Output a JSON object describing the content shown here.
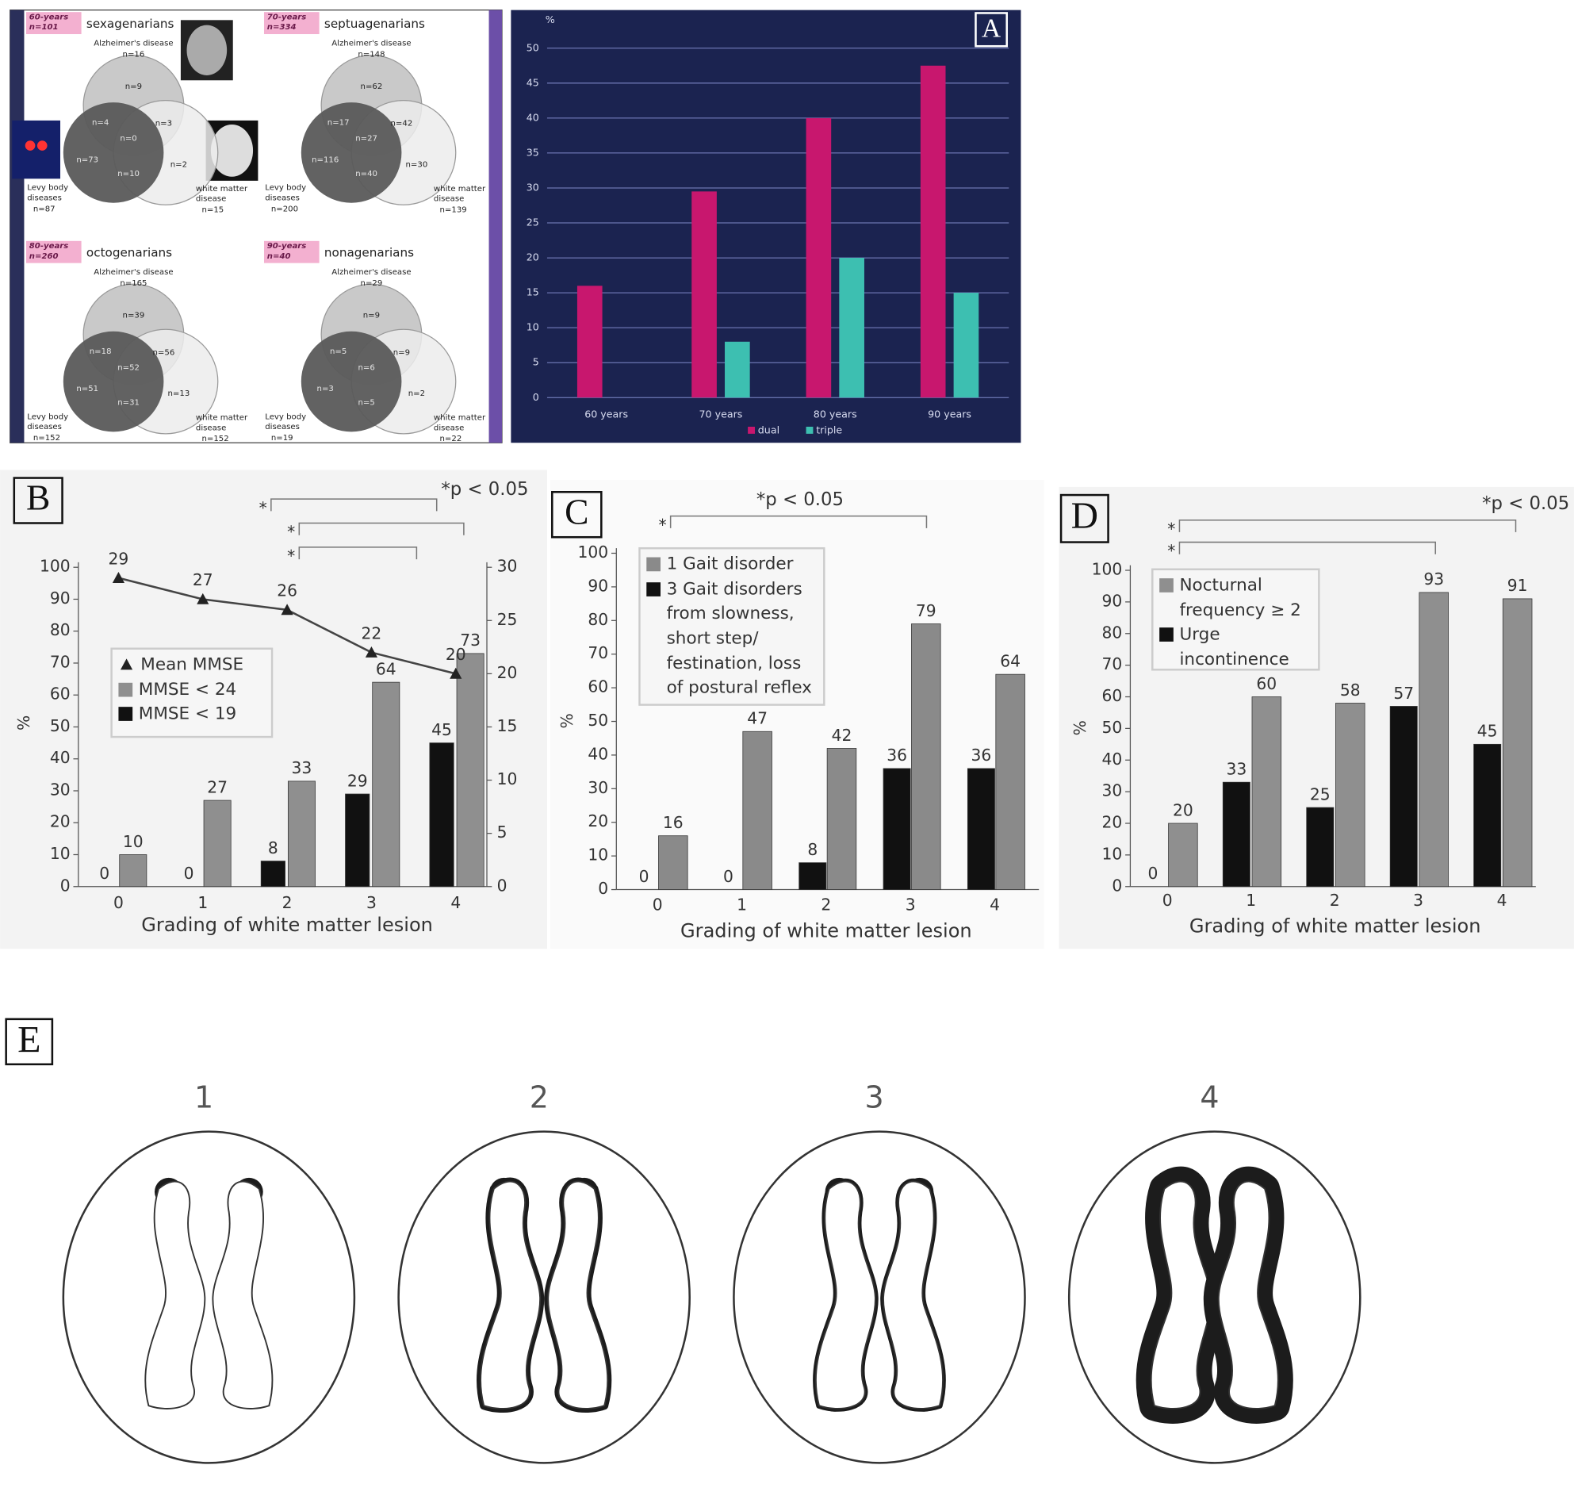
{
  "venn": {
    "groups": [
      {
        "badge": [
          "60-years",
          "n=101"
        ],
        "title": "sexagenarians",
        "sets": [
          {
            "label": [
              "Alzheimer's disease"
            ],
            "n": "n=16"
          },
          {
            "label": [
              "Levy body",
              "diseases"
            ],
            "n": "n=87"
          },
          {
            "label": [
              "white matter",
              "disease"
            ],
            "n": "n=15"
          }
        ],
        "regions": [
          "n=9",
          "n=3",
          "n=0",
          "n=4",
          "n=73",
          "n=10",
          "n=2"
        ]
      },
      {
        "badge": [
          "70-years",
          "n=334"
        ],
        "title": "septuagenarians",
        "sets": [
          {
            "label": [
              "Alzheimer's disease"
            ],
            "n": "n=148"
          },
          {
            "label": [
              "Levy body",
              "diseases"
            ],
            "n": "n=200"
          },
          {
            "label": [
              "white matter",
              "disease"
            ],
            "n": "n=139"
          }
        ],
        "regions": [
          "n=62",
          "n=42",
          "n=27",
          "n=17",
          "n=116",
          "n=40",
          "n=30"
        ]
      },
      {
        "badge": [
          "80-years",
          "n=260"
        ],
        "title": "octogenarians",
        "sets": [
          {
            "label": [
              "Alzheimer's disease"
            ],
            "n": "n=165"
          },
          {
            "label": [
              "Levy body",
              "diseases"
            ],
            "n": "n=152"
          },
          {
            "label": [
              "white matter",
              "disease"
            ],
            "n": "n=152"
          }
        ],
        "regions": [
          "n=39",
          "n=56",
          "n=52",
          "n=18",
          "n=51",
          "n=31",
          "n=13"
        ]
      },
      {
        "badge": [
          "90-years",
          "n=40"
        ],
        "title": "nonagenarians",
        "sets": [
          {
            "label": [
              "Alzheimer's disease"
            ],
            "n": "n=29"
          },
          {
            "label": [
              "Levy body",
              "diseases"
            ],
            "n": "n=19"
          },
          {
            "label": [
              "white matter",
              "disease"
            ],
            "n": "n=22"
          }
        ],
        "regions": [
          "n=9",
          "n=9",
          "n=6",
          "n=5",
          "n=3",
          "n=5",
          "n=2"
        ]
      }
    ]
  },
  "chart_data": [
    {
      "type": "bar",
      "label": "A",
      "y_label": "%",
      "categories": [
        "60 years",
        "70 years",
        "80 years",
        "90 years"
      ],
      "series": [
        {
          "name": "dual",
          "color": "#c8176e",
          "values": [
            16,
            29.5,
            40,
            47.5
          ]
        },
        {
          "name": "triple",
          "color": "#3dbfb1",
          "values": [
            null,
            8,
            20,
            15
          ]
        }
      ],
      "ylim": [
        0,
        50
      ],
      "yticks": [
        0,
        5,
        10,
        15,
        20,
        25,
        30,
        35,
        40,
        45,
        50
      ],
      "grid": true
    },
    {
      "type": "bar",
      "label": "B",
      "annotation": "*p < 0.05",
      "significance_marks": [
        "*",
        "*",
        "*"
      ],
      "y_label": "%",
      "x_label": "Grading of white matter lesion",
      "categories": [
        "0",
        "1",
        "2",
        "3",
        "4"
      ],
      "series": [
        {
          "name": "Mean MMSE",
          "type": "line",
          "axis": "y2",
          "color": "#444444",
          "values": [
            29,
            27,
            26,
            22,
            20
          ]
        },
        {
          "name": "MMSE < 24",
          "color": "#8f8f8f",
          "values": [
            10,
            27,
            33,
            64,
            73
          ]
        },
        {
          "name": "MMSE < 19",
          "color": "#111111",
          "values": [
            0,
            0,
            8,
            29,
            45
          ]
        }
      ],
      "ylim": [
        0,
        100
      ],
      "yticks": [
        0,
        10,
        20,
        30,
        40,
        50,
        60,
        70,
        80,
        90,
        100
      ],
      "y2lim": [
        0,
        30
      ],
      "y2ticks": [
        0,
        5,
        10,
        15,
        20,
        25,
        30
      ],
      "grid": false
    },
    {
      "type": "bar",
      "label": "C",
      "annotation": "*p < 0.05",
      "significance_marks": [
        "*"
      ],
      "y_label": "%",
      "x_label": "Grading of white matter lesion",
      "categories": [
        "0",
        "1",
        "2",
        "3",
        "4"
      ],
      "series": [
        {
          "name": "1 Gait disorder",
          "color": "#8a8a8a",
          "values": [
            16,
            47,
            42,
            79,
            64
          ]
        },
        {
          "name": "3 Gait disorders from slowness, short step/ festination, loss of postural reflex",
          "color": "#111111",
          "values": [
            0,
            0,
            8,
            36,
            36
          ]
        }
      ],
      "ylim": [
        0,
        100
      ],
      "yticks": [
        0,
        10,
        20,
        30,
        40,
        50,
        60,
        70,
        80,
        90,
        100
      ],
      "grid": false
    },
    {
      "type": "bar",
      "label": "D",
      "annotation": "*p < 0.05",
      "significance_marks": [
        "*",
        "*"
      ],
      "y_label": "%",
      "x_label": "Grading of white matter lesion",
      "categories": [
        "0",
        "1",
        "2",
        "3",
        "4"
      ],
      "series": [
        {
          "name": "Nocturnal frequency ≥ 2",
          "color": "#8f8f8f",
          "values": [
            20,
            60,
            58,
            93,
            91
          ]
        },
        {
          "name": "Urge incontinence",
          "color": "#111111",
          "values": [
            0,
            33,
            25,
            57,
            45
          ]
        }
      ],
      "ylim": [
        0,
        100
      ],
      "yticks": [
        0,
        10,
        20,
        30,
        40,
        50,
        60,
        70,
        80,
        90,
        100
      ],
      "grid": false
    }
  ],
  "panel_e": {
    "label": "E",
    "grades": [
      "1",
      "2",
      "3",
      "4"
    ]
  }
}
